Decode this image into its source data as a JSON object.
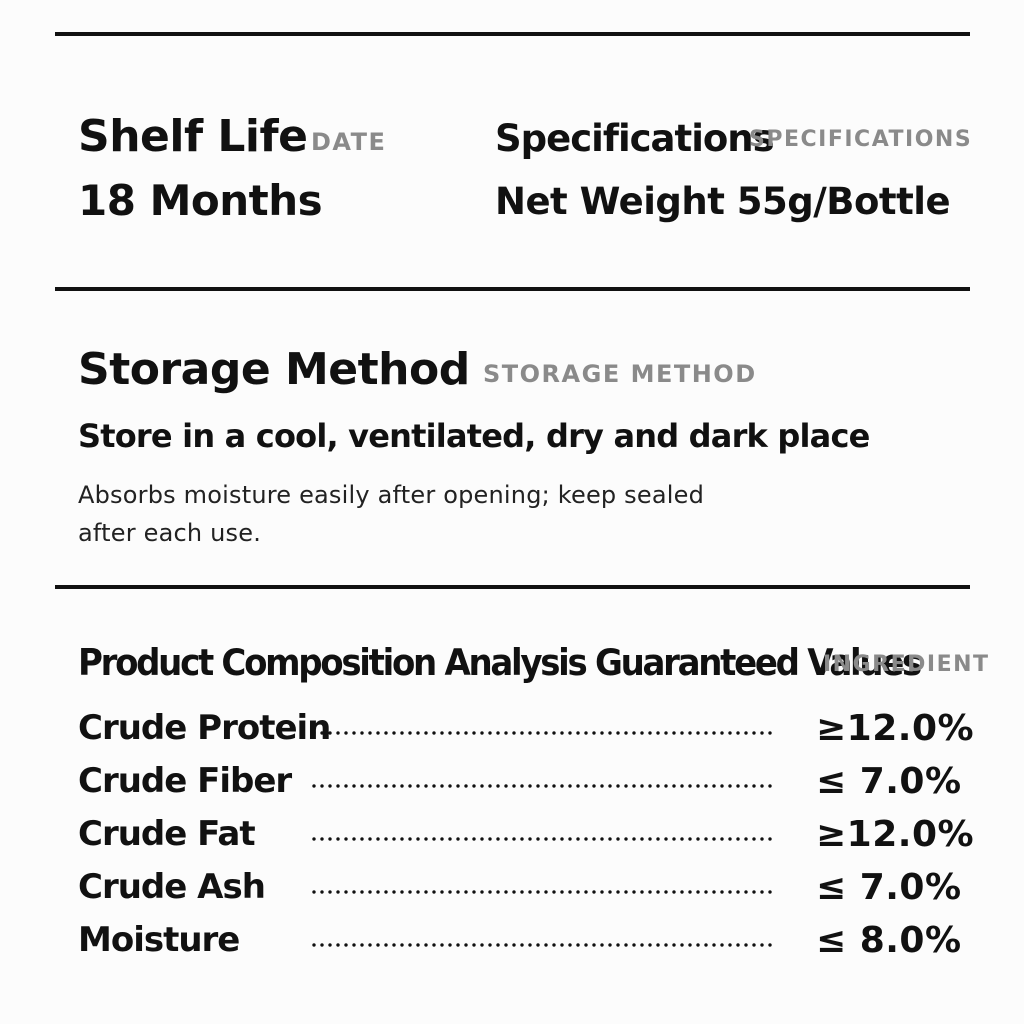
{
  "shelf_life": {
    "title": "Shelf Life",
    "tag": "DATE",
    "value": "18 Months"
  },
  "specifications": {
    "title": "Specifications",
    "tag": "SPECIFICATIONS",
    "value": "Net Weight 55g/Bottle"
  },
  "storage": {
    "title": "Storage Method",
    "tag": "STORAGE METHOD",
    "value": "Store in a cool, ventilated, dry and dark place",
    "note": "Absorbs moisture easily after opening; keep sealed after each use."
  },
  "composition": {
    "title": "Product Composition Analysis Guaranteed Values",
    "tag": "INGREDIENT",
    "rows": [
      {
        "label": "Crude Protein",
        "value": "≥12.0%"
      },
      {
        "label": "Crude Fiber",
        "value": "≤ 7.0%"
      },
      {
        "label": "Crude Fat",
        "value": "≥12.0%"
      },
      {
        "label": "Crude Ash",
        "value": "≤ 7.0%"
      },
      {
        "label": "Moisture",
        "value": "≤ 8.0%"
      }
    ]
  }
}
